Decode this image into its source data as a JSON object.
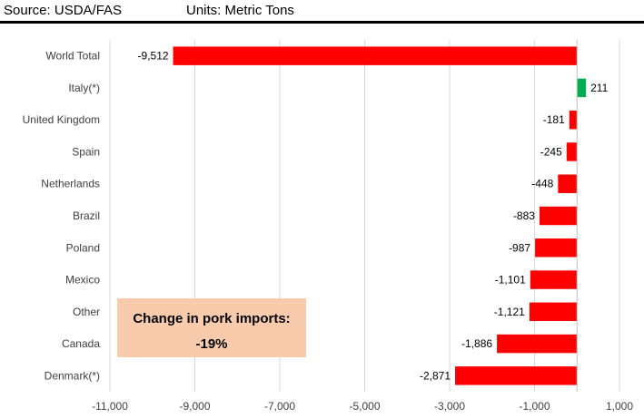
{
  "header": {
    "source": "Source: USDA/FAS",
    "units": "Units: Metric Tons"
  },
  "callout": {
    "line1": "Change in pork imports:",
    "line2": "-19%",
    "background": "#F8CBAD"
  },
  "chart_data": {
    "type": "bar",
    "orientation": "horizontal",
    "categories": [
      "World Total",
      "Italy(*)",
      "United Kingdom",
      "Spain",
      "Netherlands",
      "Brazil",
      "Poland",
      "Mexico",
      "Other",
      "Canada",
      "Denmark(*)"
    ],
    "values": [
      -9512,
      211,
      -181,
      -245,
      -448,
      -883,
      -987,
      -1101,
      -1121,
      -1886,
      -2871
    ],
    "data_labels": [
      "-9,512",
      "211",
      "-181",
      "-245",
      "-448",
      "-883",
      "-987",
      "-1,101",
      "-1,121",
      "-1,886",
      "-2,871"
    ],
    "xlim": [
      -11000,
      1000
    ],
    "x_ticks": [
      -11000,
      -9000,
      -7000,
      -5000,
      -3000,
      -1000,
      1000
    ],
    "x_tick_labels": [
      "-11,000",
      "-9,000",
      "-7,000",
      "-5,000",
      "-3,000",
      "-1,000",
      "1,000"
    ],
    "grid": "vertical",
    "colors": {
      "negative": "#FF0000",
      "positive": "#00B050",
      "grid": "#D9D9D9"
    }
  }
}
